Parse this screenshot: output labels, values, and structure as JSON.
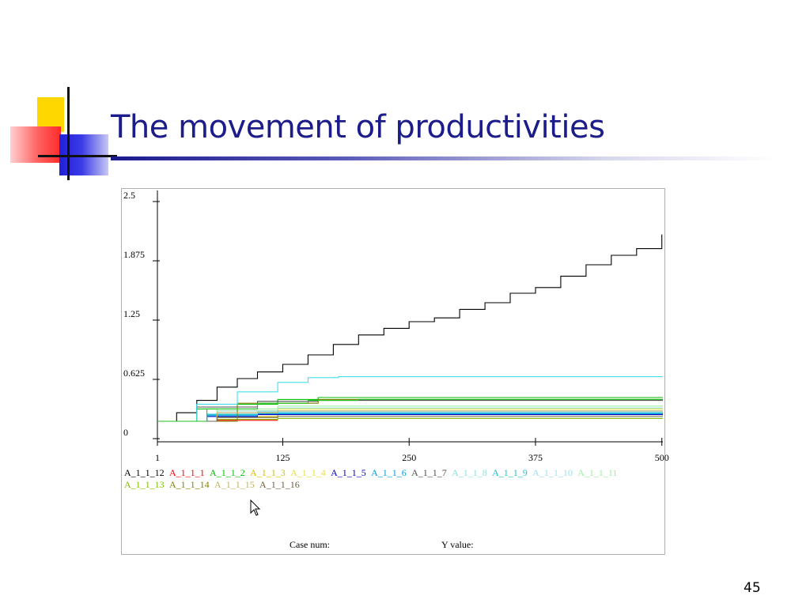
{
  "slide": {
    "title": "The movement of productivities",
    "number": "45"
  },
  "status": {
    "case_num_label": "Case num:",
    "y_value_label": "Y value:"
  },
  "chart_data": {
    "type": "line",
    "title": "",
    "xlabel": "",
    "ylabel": "",
    "xlim": [
      1,
      501
    ],
    "ylim": [
      0,
      2.5
    ],
    "x_ticks": [
      "1",
      "125",
      "250",
      "375",
      "500"
    ],
    "y_ticks": [
      "0",
      "0.625",
      "1.25",
      "1.875",
      "2.5"
    ],
    "grid": false,
    "legend_position": "bottom",
    "series": [
      {
        "name": "A_1_1_12",
        "color": "#000000",
        "x": [
          1,
          20,
          40,
          60,
          80,
          100,
          125,
          150,
          175,
          200,
          225,
          250,
          275,
          300,
          325,
          350,
          375,
          400,
          425,
          450,
          475,
          500
        ],
        "y": [
          0.15,
          0.24,
          0.37,
          0.51,
          0.6,
          0.67,
          0.75,
          0.85,
          0.96,
          1.06,
          1.13,
          1.2,
          1.24,
          1.33,
          1.4,
          1.5,
          1.56,
          1.68,
          1.8,
          1.9,
          1.97,
          2.12
        ]
      },
      {
        "name": "A_1_1_1",
        "color": "#ff0000",
        "x": [
          1,
          60,
          120
        ],
        "y": [
          0.15,
          0.16,
          0.16
        ]
      },
      {
        "name": "A_1_1_2",
        "color": "#00c000",
        "x": [
          1,
          40,
          80,
          120,
          160,
          200,
          501
        ],
        "y": [
          0.15,
          0.28,
          0.33,
          0.38,
          0.4,
          0.4,
          0.4
        ]
      },
      {
        "name": "A_1_1_3",
        "color": "#d4c000",
        "x": [
          1,
          60,
          120,
          501
        ],
        "y": [
          0.15,
          0.2,
          0.22,
          0.22
        ]
      },
      {
        "name": "A_1_1_4",
        "color": "#e8e040",
        "x": [
          1,
          60,
          120,
          501
        ],
        "y": [
          0.15,
          0.26,
          0.28,
          0.28
        ]
      },
      {
        "name": "A_1_1_5",
        "color": "#0000c0",
        "x": [
          1,
          50,
          100,
          501
        ],
        "y": [
          0.15,
          0.2,
          0.22,
          0.22
        ]
      },
      {
        "name": "A_1_1_6",
        "color": "#00a0e0",
        "x": [
          1,
          50,
          100,
          501
        ],
        "y": [
          0.15,
          0.21,
          0.23,
          0.23
        ]
      },
      {
        "name": "A_1_1_7",
        "color": "#505050",
        "x": [
          1,
          40,
          100,
          160,
          501
        ],
        "y": [
          0.15,
          0.3,
          0.36,
          0.37,
          0.37
        ]
      },
      {
        "name": "A_1_1_8",
        "color": "#90e0e0",
        "x": [
          1,
          60,
          120,
          501
        ],
        "y": [
          0.15,
          0.26,
          0.29,
          0.29
        ]
      },
      {
        "name": "A_1_1_9",
        "color": "#20c0d0",
        "x": [
          1,
          50,
          100,
          501
        ],
        "y": [
          0.15,
          0.22,
          0.24,
          0.24
        ]
      },
      {
        "name": "A_1_1_10",
        "color": "#a0e0f0",
        "x": [
          1,
          50,
          100,
          501
        ],
        "y": [
          0.15,
          0.23,
          0.25,
          0.25
        ]
      },
      {
        "name": "A_1_1_11",
        "color": "#a0f0a0",
        "x": [
          1,
          60,
          120,
          501
        ],
        "y": [
          0.15,
          0.28,
          0.31,
          0.31
        ]
      },
      {
        "name": "A_1_1_13",
        "color": "#80c000",
        "x": [
          1,
          60,
          120,
          501
        ],
        "y": [
          0.15,
          0.17,
          0.18,
          0.18
        ]
      },
      {
        "name": "A_1_1_14",
        "color": "#808000",
        "x": [
          1,
          80,
          160,
          501
        ],
        "y": [
          0.15,
          0.34,
          0.38,
          0.38
        ]
      },
      {
        "name": "A_1_1_15",
        "color": "#c0b060",
        "x": [
          1,
          60,
          120,
          501
        ],
        "y": [
          0.15,
          0.24,
          0.26,
          0.26
        ]
      },
      {
        "name": "A_1_1_16",
        "color": "#706040",
        "x": [
          1,
          60,
          120,
          501
        ],
        "y": [
          0.15,
          0.19,
          0.2,
          0.2
        ]
      },
      {
        "name": "",
        "color": "#40e0f0",
        "x": [
          1,
          40,
          80,
          120,
          150,
          180,
          501
        ],
        "y": [
          0.15,
          0.33,
          0.46,
          0.56,
          0.61,
          0.62,
          0.62
        ]
      },
      {
        "name": "",
        "color": "#20c020",
        "x": [
          1,
          50,
          100,
          150,
          200,
          501
        ],
        "y": [
          0.15,
          0.28,
          0.34,
          0.37,
          0.38,
          0.38
        ]
      }
    ]
  }
}
